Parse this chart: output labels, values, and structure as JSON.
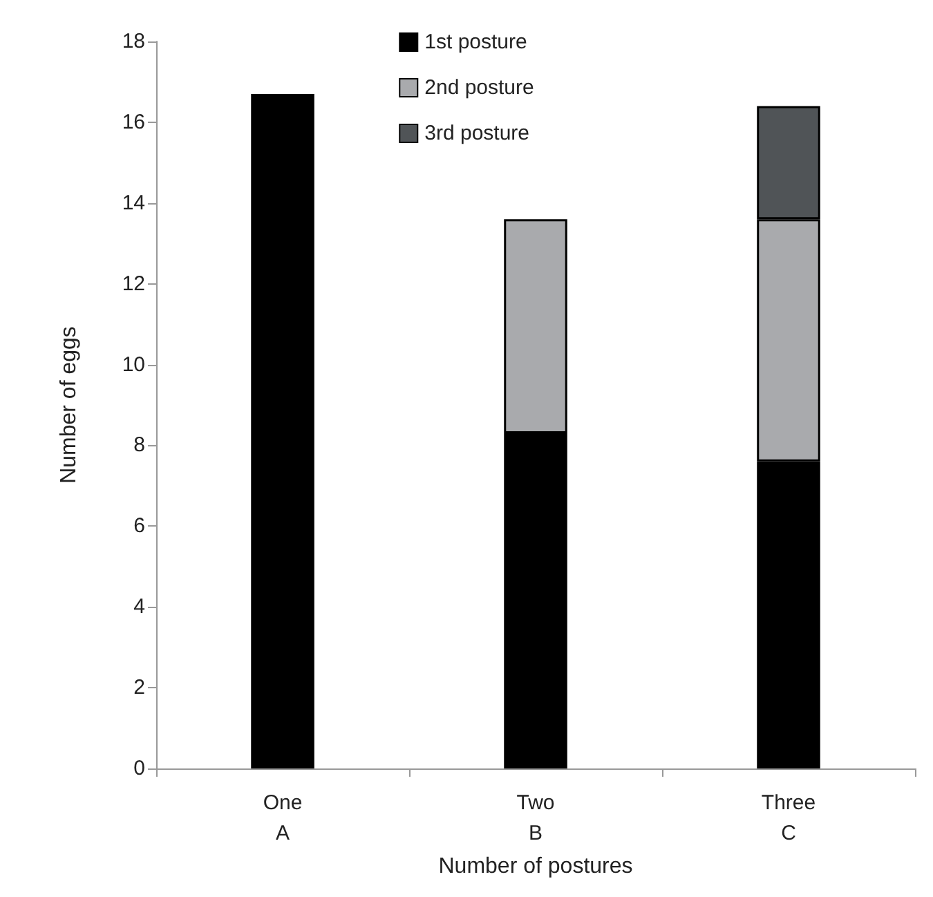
{
  "chart_data": {
    "type": "bar",
    "xlabel": "Number of postures",
    "ylabel": "Number of eggs",
    "categories": [
      "One\nA",
      "Two\nB",
      "Three\nC"
    ],
    "stacked": true,
    "ylim": [
      0,
      18
    ],
    "yticks": [
      0,
      2,
      4,
      6,
      8,
      10,
      12,
      14,
      16,
      18
    ],
    "grid": false,
    "legend": "top",
    "series": [
      {
        "name": "1st posture",
        "color": "#000000",
        "values": [
          16.7,
          8.3,
          7.6
        ]
      },
      {
        "name": "2nd posture",
        "color": "#a9aaad",
        "values": [
          null,
          5.3,
          6.0
        ]
      },
      {
        "name": "3rd posture",
        "color": "#505457",
        "values": [
          null,
          null,
          2.8
        ]
      }
    ]
  }
}
